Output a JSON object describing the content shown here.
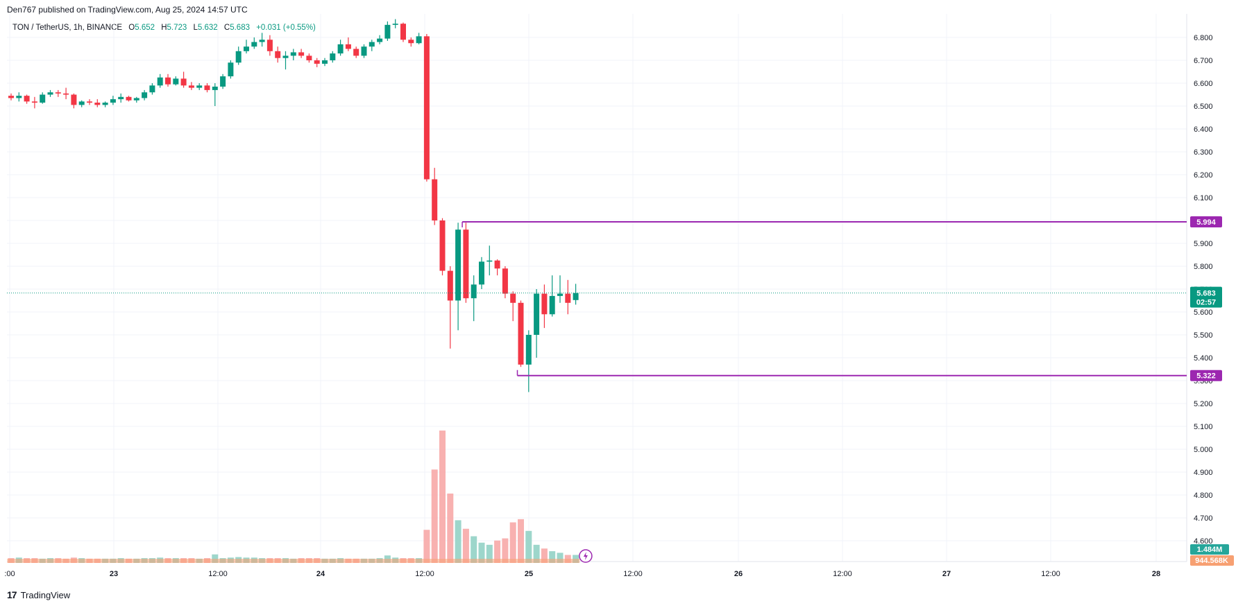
{
  "header": {
    "published": "Den767 published on TradingView.com, Aug 25, 2024 14:57 UTC"
  },
  "legend": {
    "symbol": "TON / TetherUS, 1h, BINANCE",
    "open_label": "O",
    "open": "5.652",
    "high_label": "H",
    "high": "5.723",
    "low_label": "L",
    "low": "5.632",
    "close_label": "C",
    "close": "5.683",
    "change": "+0.031 (+0.55%)"
  },
  "footer": {
    "logo": "17",
    "brand": "TradingView"
  },
  "colors": {
    "up": "#089981",
    "down": "#f23645",
    "vol_up": "#92d1c5",
    "vol_down": "#f7a9a7",
    "level": "#9c27b0",
    "price_badge": "#089981",
    "vol_badge_up": "#26a69a",
    "vol_badge_down": "#f7a072",
    "grid": "#f0f3fa"
  },
  "chart_data": {
    "type": "candlestick",
    "y_axis": {
      "ticks": [
        "6.800",
        "6.700",
        "6.600",
        "6.500",
        "6.400",
        "6.300",
        "6.200",
        "6.100",
        "6.000",
        "5.900",
        "5.800",
        "5.700",
        "5.600",
        "5.500",
        "5.400",
        "5.300",
        "5.200",
        "5.100",
        "5.000",
        "4.900",
        "4.800",
        "4.700",
        "4.600"
      ],
      "range": [
        4.55,
        6.85
      ]
    },
    "x_axis": {
      "ticks": [
        ":00",
        "23",
        "12:00",
        "24",
        "12:00",
        "25",
        "12:00",
        "26",
        "12:00",
        "27",
        "12:00",
        "28"
      ]
    },
    "levels": [
      {
        "price": 5.994,
        "label": "5.994"
      },
      {
        "price": 5.322,
        "label": "5.322"
      }
    ],
    "last_price": {
      "value": 5.683,
      "label": "5.683",
      "countdown": "02:57"
    },
    "volume_labels": {
      "current": "1.484M",
      "average": "944.568K"
    },
    "candles": [
      [
        6.545,
        6.555,
        6.525,
        6.535
      ],
      [
        6.535,
        6.56,
        6.52,
        6.545
      ],
      [
        6.545,
        6.55,
        6.51,
        6.52
      ],
      [
        6.52,
        6.54,
        6.49,
        6.515
      ],
      [
        6.515,
        6.56,
        6.51,
        6.55
      ],
      [
        6.55,
        6.57,
        6.54,
        6.56
      ],
      [
        6.56,
        6.57,
        6.54,
        6.555
      ],
      [
        6.555,
        6.58,
        6.53,
        6.55
      ],
      [
        6.55,
        6.555,
        6.49,
        6.505
      ],
      [
        6.505,
        6.525,
        6.495,
        6.52
      ],
      [
        6.52,
        6.53,
        6.505,
        6.515
      ],
      [
        6.515,
        6.53,
        6.495,
        6.505
      ],
      [
        6.505,
        6.52,
        6.495,
        6.515
      ],
      [
        6.515,
        6.545,
        6.505,
        6.53
      ],
      [
        6.53,
        6.555,
        6.515,
        6.54
      ],
      [
        6.54,
        6.545,
        6.52,
        6.525
      ],
      [
        6.525,
        6.54,
        6.515,
        6.535
      ],
      [
        6.535,
        6.57,
        6.525,
        6.56
      ],
      [
        6.56,
        6.6,
        6.55,
        6.59
      ],
      [
        6.59,
        6.64,
        6.58,
        6.625
      ],
      [
        6.625,
        6.64,
        6.585,
        6.595
      ],
      [
        6.595,
        6.63,
        6.59,
        6.62
      ],
      [
        6.62,
        6.65,
        6.58,
        6.59
      ],
      [
        6.59,
        6.605,
        6.57,
        6.58
      ],
      [
        6.58,
        6.6,
        6.57,
        6.59
      ],
      [
        6.59,
        6.6,
        6.56,
        6.57
      ],
      [
        6.57,
        6.6,
        6.5,
        6.585
      ],
      [
        6.585,
        6.64,
        6.575,
        6.63
      ],
      [
        6.63,
        6.7,
        6.62,
        6.69
      ],
      [
        6.69,
        6.76,
        6.68,
        6.74
      ],
      [
        6.74,
        6.79,
        6.73,
        6.76
      ],
      [
        6.76,
        6.8,
        6.75,
        6.78
      ],
      [
        6.78,
        6.82,
        6.76,
        6.79
      ],
      [
        6.79,
        6.81,
        6.72,
        6.74
      ],
      [
        6.74,
        6.76,
        6.69,
        6.71
      ],
      [
        6.71,
        6.74,
        6.66,
        6.72
      ],
      [
        6.72,
        6.75,
        6.7,
        6.735
      ],
      [
        6.735,
        6.75,
        6.71,
        6.72
      ],
      [
        6.72,
        6.73,
        6.69,
        6.7
      ],
      [
        6.7,
        6.71,
        6.67,
        6.685
      ],
      [
        6.685,
        6.71,
        6.675,
        6.7
      ],
      [
        6.7,
        6.74,
        6.69,
        6.73
      ],
      [
        6.73,
        6.79,
        6.72,
        6.77
      ],
      [
        6.77,
        6.8,
        6.74,
        6.75
      ],
      [
        6.75,
        6.76,
        6.71,
        6.72
      ],
      [
        6.72,
        6.77,
        6.71,
        6.76
      ],
      [
        6.76,
        6.79,
        6.74,
        6.78
      ],
      [
        6.78,
        6.81,
        6.77,
        6.795
      ],
      [
        6.795,
        6.87,
        6.785,
        6.855
      ],
      [
        6.855,
        6.88,
        6.84,
        6.86
      ],
      [
        6.86,
        6.865,
        6.78,
        6.79
      ],
      [
        6.79,
        6.8,
        6.76,
        6.775
      ],
      [
        6.775,
        6.82,
        6.77,
        6.805
      ],
      [
        6.805,
        6.815,
        6.17,
        6.18
      ],
      [
        6.18,
        6.23,
        5.98,
        6.0
      ],
      [
        6.0,
        6.01,
        5.76,
        5.78
      ],
      [
        5.78,
        5.8,
        5.44,
        5.65
      ],
      [
        5.65,
        5.99,
        5.52,
        5.96
      ],
      [
        5.96,
        5.99,
        5.64,
        5.66
      ],
      [
        5.66,
        5.76,
        5.56,
        5.72
      ],
      [
        5.72,
        5.84,
        5.7,
        5.82
      ],
      [
        5.82,
        5.89,
        5.76,
        5.825
      ],
      [
        5.825,
        5.83,
        5.76,
        5.79
      ],
      [
        5.79,
        5.8,
        5.66,
        5.68
      ],
      [
        5.68,
        5.69,
        5.56,
        5.64
      ],
      [
        5.64,
        5.65,
        5.36,
        5.37
      ],
      [
        5.37,
        5.52,
        5.25,
        5.5
      ],
      [
        5.5,
        5.7,
        5.4,
        5.68
      ],
      [
        5.68,
        5.72,
        5.53,
        5.59
      ],
      [
        5.59,
        5.76,
        5.58,
        5.67
      ],
      [
        5.67,
        5.76,
        5.64,
        5.68
      ],
      [
        5.68,
        5.74,
        5.59,
        5.64
      ],
      [
        5.652,
        5.723,
        5.632,
        5.683
      ]
    ],
    "volumes": [
      0.9,
      1.0,
      0.9,
      0.9,
      0.8,
      0.9,
      0.9,
      0.8,
      1.0,
      0.9,
      0.8,
      0.8,
      0.8,
      0.8,
      0.9,
      0.8,
      0.8,
      0.9,
      0.9,
      1.0,
      0.9,
      0.9,
      0.9,
      0.9,
      0.8,
      0.9,
      1.6,
      0.9,
      1.0,
      1.1,
      1.0,
      1.0,
      0.9,
      0.9,
      0.9,
      0.9,
      0.8,
      0.9,
      0.9,
      0.9,
      0.8,
      0.8,
      0.9,
      0.8,
      0.8,
      0.8,
      0.8,
      0.9,
      1.4,
      1.0,
      0.9,
      0.9,
      0.9,
      6.2,
      17.5,
      24.8,
      13.0,
      8.0,
      6.4,
      5.0,
      3.8,
      3.4,
      4.2,
      4.6,
      7.6,
      8.2,
      6.0,
      3.4,
      2.7,
      2.2,
      1.9,
      1.5,
      1.5
    ]
  }
}
